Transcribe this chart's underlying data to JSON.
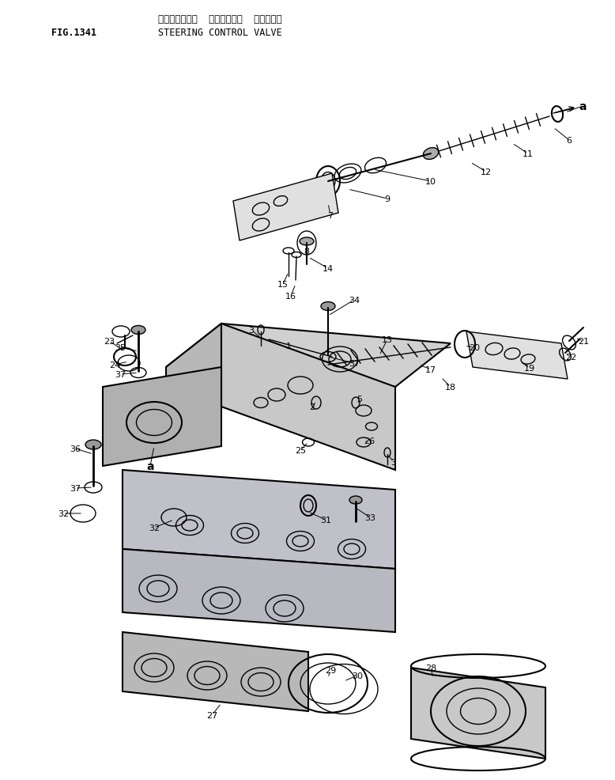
{
  "title_japanese": "ステアリング゚  コントロール  パルプ",
  "title_english": "STEERING CONTROL VALVE",
  "fig_label": "FIG.1341",
  "bg": "#ffffff",
  "lc": "#000000"
}
